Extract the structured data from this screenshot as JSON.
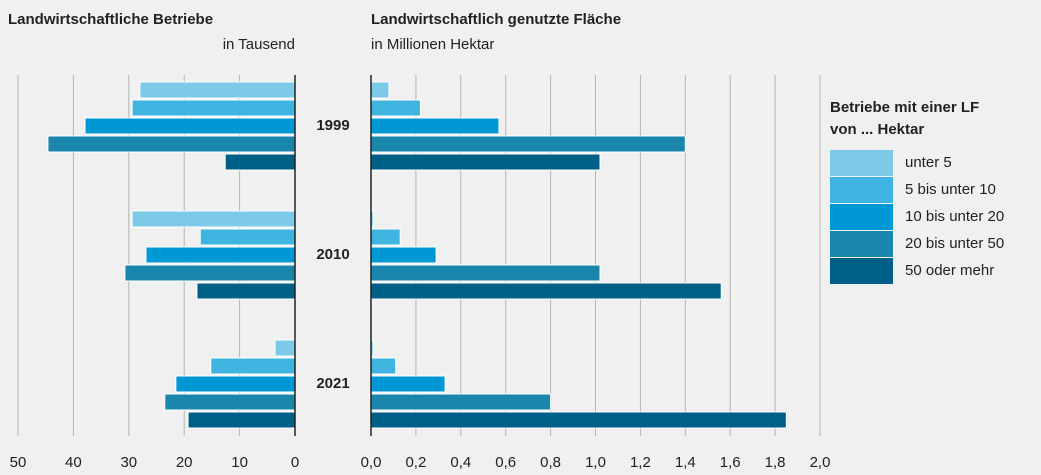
{
  "chart_data": [
    {
      "type": "bar",
      "orientation": "horizontal",
      "title": "Landwirtschaftliche Betriebe",
      "subtitle": "in Tausend",
      "xlim": [
        50,
        0
      ],
      "xticks": [
        50,
        40,
        30,
        20,
        10,
        0
      ],
      "grid": true,
      "series": [
        {
          "color": "#7cc9e8",
          "values": [
            28.0,
            29.4,
            3.6
          ]
        },
        {
          "color": "#3fb4e0",
          "values": [
            29.4,
            17.1,
            15.2
          ]
        },
        {
          "color": "#0098d4",
          "values": [
            37.9,
            26.9,
            21.5
          ]
        },
        {
          "color": "#1a86ac",
          "values": [
            44.6,
            30.7,
            23.5
          ]
        },
        {
          "color": "#005f86",
          "values": [
            12.6,
            17.7,
            19.3
          ]
        }
      ]
    },
    {
      "type": "bar",
      "orientation": "horizontal",
      "title": "Landwirtschaftlich genutzte Fläche",
      "subtitle": "in Millionen Hektar",
      "categories": [
        "1999",
        "2010",
        "2021"
      ],
      "xlim": [
        0,
        2
      ],
      "grid": true,
      "xticks": [
        {
          "value": 0,
          "label": "0,0"
        },
        {
          "value": 0.2,
          "label": "0,2"
        },
        {
          "value": 0.4,
          "label": "0,4"
        },
        {
          "value": 0.6,
          "label": "0,6"
        },
        {
          "value": 0.8,
          "label": "0,8"
        },
        {
          "value": 1,
          "label": "1,0"
        },
        {
          "value": 1.2,
          "label": "1,2"
        },
        {
          "value": 1.4,
          "label": "1,4"
        },
        {
          "value": 1.6,
          "label": "1,6"
        },
        {
          "value": 1.8,
          "label": "1,8"
        },
        {
          "value": 2,
          "label": "2,0"
        }
      ],
      "legend_title": [
        "Betriebe mit einer LF",
        "von ... Hektar"
      ],
      "legend": "right",
      "series": [
        {
          "name": "unter 5",
          "color": "#7cc9e8",
          "values": [
            0.08,
            0.01,
            0.01
          ]
        },
        {
          "name": "5 bis unter 10",
          "color": "#3fb4e0",
          "values": [
            0.22,
            0.13,
            0.11
          ]
        },
        {
          "name": "10 bis unter 20",
          "color": "#0098d4",
          "values": [
            0.57,
            0.29,
            0.33
          ]
        },
        {
          "name": "20 bis unter 50",
          "color": "#1a86ac",
          "values": [
            1.4,
            1.02,
            0.8
          ]
        },
        {
          "name": "50 oder mehr",
          "color": "#005f86",
          "values": [
            1.02,
            1.56,
            1.85
          ]
        }
      ]
    }
  ]
}
